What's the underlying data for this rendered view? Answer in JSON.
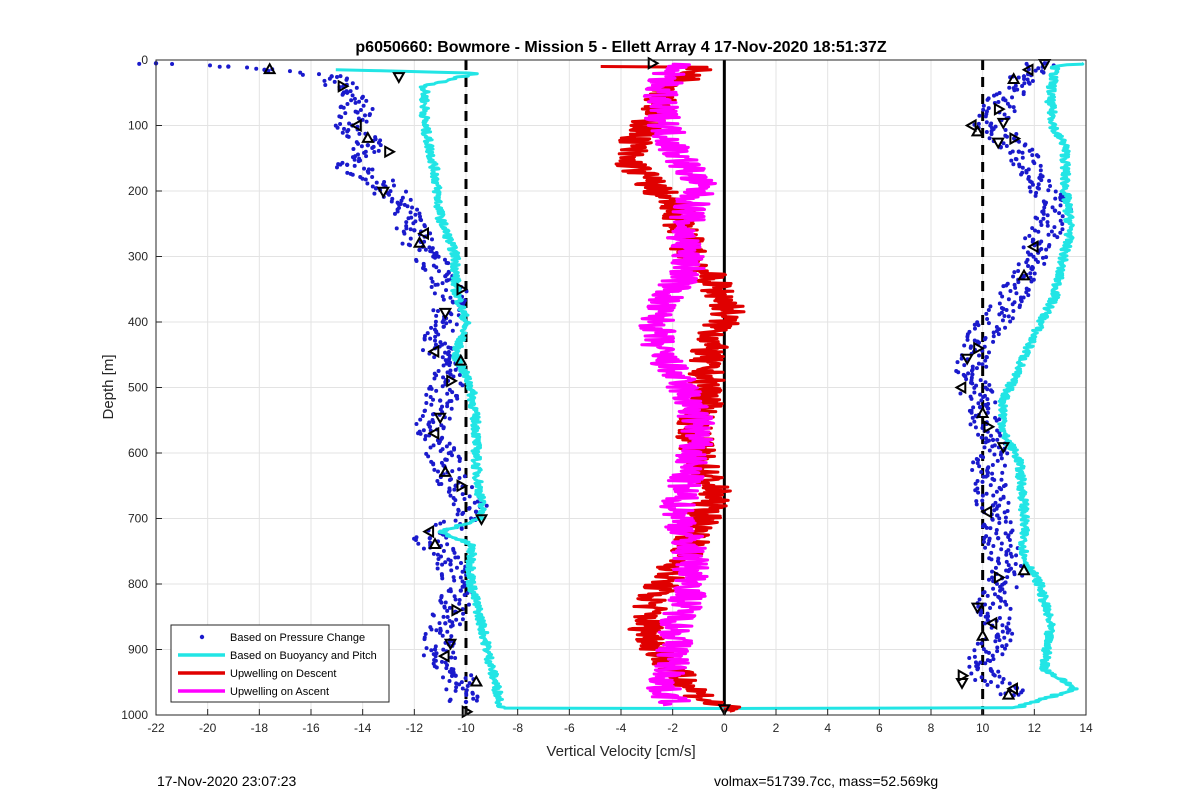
{
  "chart_data": {
    "type": "scatter",
    "title": "p6050660: Bowmore - Mission 5 - Ellett Array 4 17-Nov-2020 18:51:37Z",
    "xlabel": "Vertical Velocity [cm/s]",
    "ylabel": "Depth [m]",
    "xlim": [
      -22,
      14
    ],
    "ylim": [
      0,
      1000
    ],
    "y_reversed": true,
    "grid": true,
    "legend_position": "bottom-left",
    "xticks": [
      -22,
      -20,
      -18,
      -16,
      -14,
      -12,
      -10,
      -8,
      -6,
      -4,
      -2,
      0,
      2,
      4,
      6,
      8,
      10,
      12,
      14
    ],
    "yticks": [
      0,
      100,
      200,
      300,
      400,
      500,
      600,
      700,
      800,
      900,
      1000
    ],
    "reference_lines": [
      {
        "x": -10,
        "style": "dashed",
        "color": "#000000"
      },
      {
        "x": 10,
        "style": "dashed",
        "color": "#000000"
      },
      {
        "x": 0,
        "style": "solid",
        "color": "#000000"
      }
    ],
    "series": [
      {
        "name": "Based on Pressure Change",
        "kind": "points",
        "color": "#1a1acc",
        "description_points_descent": [
          [
            -22,
            5
          ],
          [
            -19.2,
            10
          ],
          [
            -17.8,
            15
          ],
          [
            -15.2,
            25
          ],
          [
            -14.6,
            50
          ],
          [
            -14.2,
            80
          ],
          [
            -14.4,
            100
          ],
          [
            -13.8,
            130
          ],
          [
            -14.6,
            160
          ],
          [
            -13.2,
            190
          ],
          [
            -12.6,
            220
          ],
          [
            -12,
            260
          ],
          [
            -11.8,
            290
          ],
          [
            -10.8,
            330
          ],
          [
            -10.5,
            370
          ],
          [
            -10.9,
            400
          ],
          [
            -11.2,
            440
          ],
          [
            -10.6,
            480
          ],
          [
            -11,
            520
          ],
          [
            -11.4,
            560
          ],
          [
            -10.8,
            610
          ],
          [
            -10.4,
            650
          ],
          [
            -9.6,
            690
          ],
          [
            -11.4,
            730
          ],
          [
            -10.6,
            770
          ],
          [
            -10.2,
            810
          ],
          [
            -10.8,
            860
          ],
          [
            -11.2,
            900
          ],
          [
            -10.4,
            940
          ],
          [
            -10,
            980
          ]
        ],
        "description_points_ascent": [
          [
            12.4,
            5
          ],
          [
            11.6,
            25
          ],
          [
            10.8,
            60
          ],
          [
            10.3,
            100
          ],
          [
            11.4,
            140
          ],
          [
            12.2,
            180
          ],
          [
            12.8,
            230
          ],
          [
            12.2,
            280
          ],
          [
            11.6,
            330
          ],
          [
            10.8,
            380
          ],
          [
            9.8,
            430
          ],
          [
            9.6,
            480
          ],
          [
            9.9,
            530
          ],
          [
            10.4,
            580
          ],
          [
            10.2,
            630
          ],
          [
            10.4,
            680
          ],
          [
            10.6,
            730
          ],
          [
            11,
            780
          ],
          [
            10.4,
            830
          ],
          [
            10.6,
            880
          ],
          [
            9.8,
            930
          ],
          [
            11.2,
            970
          ]
        ]
      },
      {
        "name": "Based on Buoyancy and Pitch",
        "kind": "line",
        "color": "#22e5e5",
        "points_descent": [
          [
            -15,
            15
          ],
          [
            -9.6,
            20
          ],
          [
            -11.6,
            40
          ],
          [
            -11.6,
            100
          ],
          [
            -11.2,
            170
          ],
          [
            -11,
            240
          ],
          [
            -10.4,
            300
          ],
          [
            -10.4,
            350
          ],
          [
            -10,
            400
          ],
          [
            -10.4,
            450
          ],
          [
            -9.8,
            500
          ],
          [
            -9.6,
            560
          ],
          [
            -9.6,
            620
          ],
          [
            -9.4,
            680
          ],
          [
            -9.4,
            700
          ],
          [
            -11,
            720
          ],
          [
            -9.8,
            740
          ],
          [
            -9.8,
            800
          ],
          [
            -9.4,
            860
          ],
          [
            -9,
            930
          ],
          [
            -8.6,
            990
          ],
          [
            0,
            990
          ]
        ],
        "points_ascent": [
          [
            14,
            5
          ],
          [
            12.8,
            10
          ],
          [
            12.6,
            60
          ],
          [
            12.8,
            110
          ],
          [
            13.2,
            130
          ],
          [
            13.2,
            200
          ],
          [
            13.4,
            260
          ],
          [
            13,
            320
          ],
          [
            12.8,
            360
          ],
          [
            12,
            420
          ],
          [
            11.4,
            470
          ],
          [
            10.8,
            520
          ],
          [
            10.8,
            570
          ],
          [
            11.4,
            610
          ],
          [
            11.6,
            680
          ],
          [
            11.6,
            760
          ],
          [
            12.2,
            800
          ],
          [
            12.6,
            860
          ],
          [
            12.4,
            930
          ],
          [
            13.6,
            960
          ],
          [
            11.2,
            990
          ],
          [
            0,
            990
          ]
        ]
      },
      {
        "name": "Upwelling on Descent",
        "kind": "line",
        "color": "#e00000",
        "points": [
          [
            -5,
            10
          ],
          [
            -1,
            10
          ],
          [
            -2.2,
            50
          ],
          [
            -3,
            100
          ],
          [
            -3.8,
            150
          ],
          [
            -2.8,
            190
          ],
          [
            -1.8,
            230
          ],
          [
            -1.4,
            290
          ],
          [
            -0.6,
            330
          ],
          [
            0.2,
            380
          ],
          [
            -0.4,
            420
          ],
          [
            -0.8,
            460
          ],
          [
            -0.6,
            510
          ],
          [
            -1.2,
            560
          ],
          [
            -1,
            610
          ],
          [
            -0.4,
            660
          ],
          [
            -0.8,
            700
          ],
          [
            -1.6,
            760
          ],
          [
            -2.8,
            820
          ],
          [
            -3,
            870
          ],
          [
            -2.4,
            910
          ],
          [
            -1.8,
            940
          ],
          [
            -0.6,
            980
          ],
          [
            0.8,
            995
          ]
        ]
      },
      {
        "name": "Upwelling on Ascent",
        "kind": "line",
        "color": "#ff00ff",
        "points": [
          [
            -2,
            5
          ],
          [
            -2.6,
            60
          ],
          [
            -2,
            130
          ],
          [
            -1,
            190
          ],
          [
            -1.6,
            260
          ],
          [
            -1.4,
            320
          ],
          [
            -2.6,
            380
          ],
          [
            -2.6,
            440
          ],
          [
            -1.6,
            500
          ],
          [
            -1,
            560
          ],
          [
            -1.4,
            620
          ],
          [
            -1.8,
            680
          ],
          [
            -1.4,
            740
          ],
          [
            -1.2,
            800
          ],
          [
            -1.8,
            860
          ],
          [
            -2,
            920
          ],
          [
            -2.4,
            960
          ],
          [
            -1.8,
            985
          ]
        ]
      }
    ],
    "markers": {
      "kind": "triangles",
      "color": "#000000",
      "points": [
        [
          -17.6,
          15
        ],
        [
          -14.8,
          40
        ],
        [
          -12.6,
          25
        ],
        [
          -14.2,
          100
        ],
        [
          -13.8,
          120
        ],
        [
          -13,
          140
        ],
        [
          -13.2,
          200
        ],
        [
          -11.6,
          265
        ],
        [
          -11.8,
          280
        ],
        [
          -10.2,
          350
        ],
        [
          -10.8,
          385
        ],
        [
          -11.2,
          445
        ],
        [
          -10.2,
          460
        ],
        [
          -10.6,
          490
        ],
        [
          -11,
          545
        ],
        [
          -11.2,
          570
        ],
        [
          -10.8,
          630
        ],
        [
          -10.2,
          650
        ],
        [
          -9.4,
          700
        ],
        [
          -11.4,
          720
        ],
        [
          -11.2,
          740
        ],
        [
          -10.4,
          840
        ],
        [
          -10.6,
          890
        ],
        [
          -10.8,
          910
        ],
        [
          -9.6,
          950
        ],
        [
          -10,
          995
        ],
        [
          12.4,
          5
        ],
        [
          11.8,
          15
        ],
        [
          11.2,
          30
        ],
        [
          10.6,
          75
        ],
        [
          10.8,
          95
        ],
        [
          9.6,
          100
        ],
        [
          9.8,
          110
        ],
        [
          11.2,
          120
        ],
        [
          10.6,
          125
        ],
        [
          12,
          285
        ],
        [
          11.6,
          330
        ],
        [
          9.8,
          440
        ],
        [
          9.4,
          455
        ],
        [
          9.2,
          500
        ],
        [
          10.0,
          540
        ],
        [
          10.2,
          560
        ],
        [
          10.8,
          590
        ],
        [
          10.2,
          690
        ],
        [
          11.6,
          780
        ],
        [
          10.6,
          790
        ],
        [
          9.8,
          835
        ],
        [
          10.4,
          860
        ],
        [
          10,
          880
        ],
        [
          9.2,
          940
        ],
        [
          9.2,
          950
        ],
        [
          11.2,
          960
        ],
        [
          11,
          970
        ],
        [
          -2.8,
          5
        ],
        [
          0,
          990
        ]
      ]
    }
  },
  "legend": [
    {
      "label": "Based on Pressure Change",
      "style": "dot",
      "color": "#1a1acc"
    },
    {
      "label": "Based on Buoyancy and Pitch",
      "style": "line",
      "color": "#22e5e5"
    },
    {
      "label": "Upwelling on Descent",
      "style": "line",
      "color": "#e00000"
    },
    {
      "label": "Upwelling on Ascent",
      "style": "line",
      "color": "#ff00ff"
    }
  ],
  "footer": {
    "left": "17-Nov-2020 23:07:23",
    "right": "volmax=51739.7cc, mass=52.569kg"
  }
}
